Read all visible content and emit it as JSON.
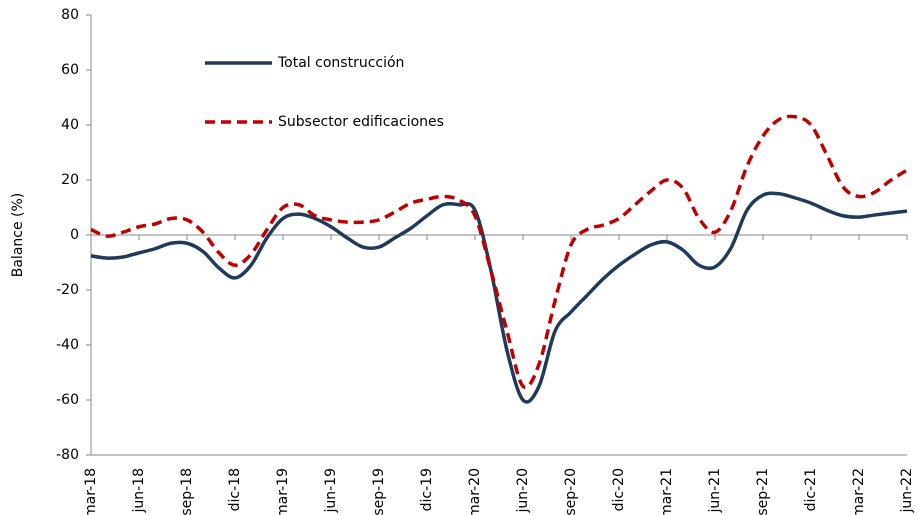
{
  "chart_data": {
    "type": "line",
    "y_label": "Balance (%)",
    "categories": [
      "mar-18",
      null,
      null,
      "jun-18",
      null,
      null,
      "sep-18",
      null,
      null,
      "dic-18",
      null,
      null,
      "mar-19",
      null,
      null,
      "jun-19",
      null,
      null,
      "sep-19",
      null,
      null,
      "dic-19",
      null,
      null,
      "mar-20",
      null,
      null,
      "jun-20",
      null,
      null,
      "sep-20",
      null,
      null,
      "dic-20",
      null,
      null,
      "mar-21",
      null,
      null,
      "jun-21",
      null,
      null,
      "sep-21",
      null,
      null,
      "dic-21",
      null,
      null,
      "mar-22",
      null,
      null,
      "jun-22"
    ],
    "series": [
      {
        "name": "Total construcción",
        "color": "#1f3a5a",
        "dash": false,
        "values": [
          -7.6,
          -8.4,
          -8,
          -6.5,
          -5,
          -3,
          -3,
          -6,
          -12,
          -15.6,
          -11,
          -1,
          6,
          7.6,
          6,
          3,
          -1,
          -4.4,
          -4.4,
          -1,
          2.5,
          7,
          11,
          11,
          9,
          -13,
          -42,
          -60,
          -55,
          -35,
          -28,
          -22,
          -16,
          -11,
          -7,
          -3.6,
          -2.5,
          -5.5,
          -11,
          -11.6,
          -4.7,
          9,
          14.5,
          15,
          13.5,
          11.6,
          9,
          7,
          6.5,
          7.3,
          8,
          8.7
        ]
      },
      {
        "name": "Subsector edificaciones",
        "color": "#c00000",
        "dash": true,
        "values": [
          2,
          -0.4,
          1,
          3,
          4,
          6,
          5.5,
          1,
          -6.5,
          -11,
          -7,
          2,
          10,
          11,
          7,
          5.5,
          4.7,
          4.7,
          5.5,
          8.4,
          11.6,
          13,
          14,
          12.7,
          7,
          -13,
          -35,
          -55,
          -47,
          -24,
          -3.6,
          2,
          3.6,
          6,
          11,
          16,
          20,
          17,
          6,
          1,
          9,
          25,
          36,
          42,
          43,
          40,
          29,
          17.5,
          14,
          15.6,
          20,
          23.6
        ]
      }
    ],
    "ylim": [
      -80,
      80
    ],
    "yticks": [
      -80,
      -60,
      -40,
      -20,
      0,
      20,
      40,
      60,
      80
    ]
  }
}
